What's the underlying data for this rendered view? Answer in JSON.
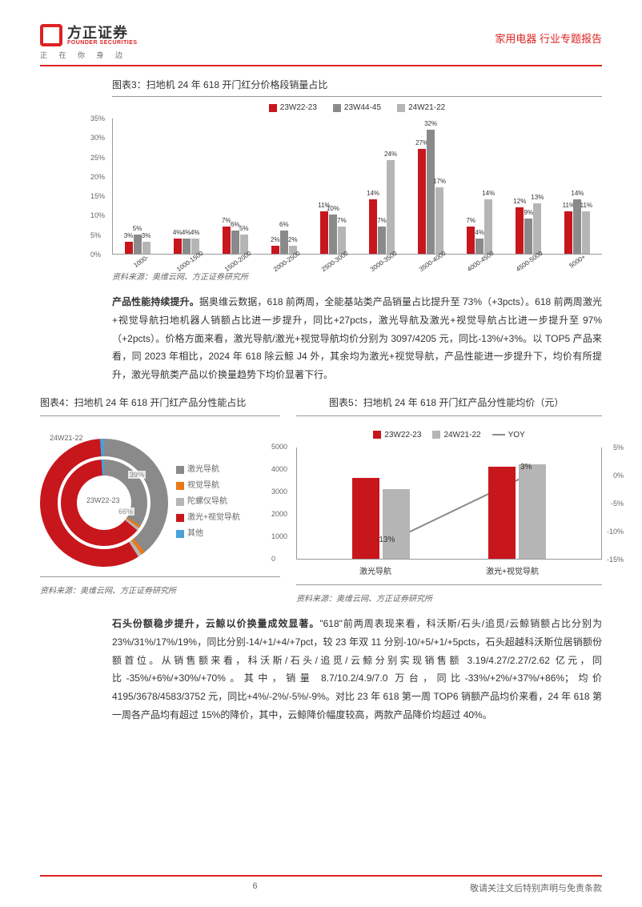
{
  "header": {
    "logo_cn": "方正证券",
    "logo_en": "FOUNDER SECURITIES",
    "logo_sub": "正 在 你 身 边",
    "right": "家用电器 行业专题报告"
  },
  "chart3": {
    "title": "图表3：扫地机 24 年 618 开门红分价格段销量占比",
    "legend": [
      "23W22-23",
      "23W44-45",
      "24W21-22"
    ],
    "series_colors": [
      "#c8161d",
      "#8a8a8a",
      "#b5b5b5"
    ],
    "categories": [
      "1000-",
      "1000-1500",
      "1500-2000",
      "2000-2500",
      "2500-3000",
      "3000-3500",
      "3500-4000",
      "4000-4500",
      "4500-5000",
      "5000+"
    ],
    "values": [
      [
        3,
        5,
        3
      ],
      [
        4,
        4,
        4
      ],
      [
        7,
        6,
        5
      ],
      [
        2,
        6,
        2
      ],
      [
        11,
        10,
        7
      ],
      [
        14,
        7,
        24
      ],
      [
        27,
        32,
        17
      ],
      [
        7,
        4,
        14
      ],
      [
        12,
        9,
        13
      ],
      [
        11,
        14,
        11
      ]
    ],
    "ymax": 35,
    "ytick": 5,
    "source": "资料来源：奥维云网、方正证券研究所"
  },
  "para1": {
    "bold": "产品性能持续提升。",
    "text": "据奥维云数据，618 前两周，全能基站类产品销量占比提升至 73%（+3pcts）。618 前两周激光+视觉导航扫地机器人销额占比进一步提升，同比+27pcts，激光导航及激光+视觉导航占比进一步提升至 97%（+2pcts）。价格方面来看，激光导航/激光+视觉导航均价分别为 3097/4205 元，同比-13%/+3%。以 TOP5 产品来看，同 2023 年相比，2024 年 618 除云鲸 J4 外，其余均为激光+视觉导航，产品性能进一步提升下，均价有所提升，激光导航类产品以价换量趋势下均价显著下行。"
  },
  "chart4": {
    "title": "图表4：扫地机 24 年 618 开门红产品分性能占比",
    "outer_label": "24W21-22",
    "inner_label": "23W22-23",
    "pct_outer": "39%",
    "pct_inner": "66%",
    "legend": [
      "激光导航",
      "视觉导航",
      "陀螺仪导航",
      "激光+视觉导航",
      "其他"
    ],
    "legend_colors": [
      "#8a8a8a",
      "#e97817",
      "#b5b5b5",
      "#c8161d",
      "#4aa0d9"
    ],
    "source": "资料来源：奥维云网、方正证券研究所"
  },
  "chart5": {
    "title": "图表5：扫地机 24 年 618 开门红产品分性能均价（元）",
    "legend": [
      "23W22-23",
      "24W21-22",
      "YOY"
    ],
    "categories": [
      "激光导航",
      "激光+视觉导航"
    ],
    "bars": [
      [
        3600,
        3097
      ],
      [
        4100,
        4205
      ]
    ],
    "yoy": [
      "-13%",
      "3%"
    ],
    "yl_max": 5000,
    "yl_step": 1000,
    "yr_ticks": [
      "5%",
      "0%",
      "-5%",
      "-10%",
      "-15%"
    ],
    "source": "资料来源：奥维云网、方正证券研究所"
  },
  "para2": {
    "bold": "石头份额稳步提升，云鲸以价换量成效显著。",
    "text": "\"618\"前两周表现来看，科沃斯/石头/追觅/云鲸销额占比分别为 23%/31%/17%/19%，同比分别-14/+1/+4/+7pct，较 23 年双 11 分别-10/+5/+1/+5pcts，石头超越科沃斯位居销额份额首位。从销售额来看，科沃斯/石头/追觅/云鲸分别实现销售额 3.19/4.27/2.27/2.62 亿元，同比-35%/+6%/+30%/+70%。其中，销量 8.7/10.2/4.9/7.0 万台，同比-33%/+2%/+37%/+86%；均价 4195/3678/4583/3752 元，同比+4%/-2%/-5%/-9%。对比 23 年 618 第一周 TOP6 销额产品均价来看，24 年 618 第一周各产品均有超过 15%的降价，其中，云鲸降价幅度较高，两款产品降价均超过 40%。"
  },
  "footer": {
    "page": "6",
    "right": "敬请关注文后特别声明与免责条款"
  }
}
